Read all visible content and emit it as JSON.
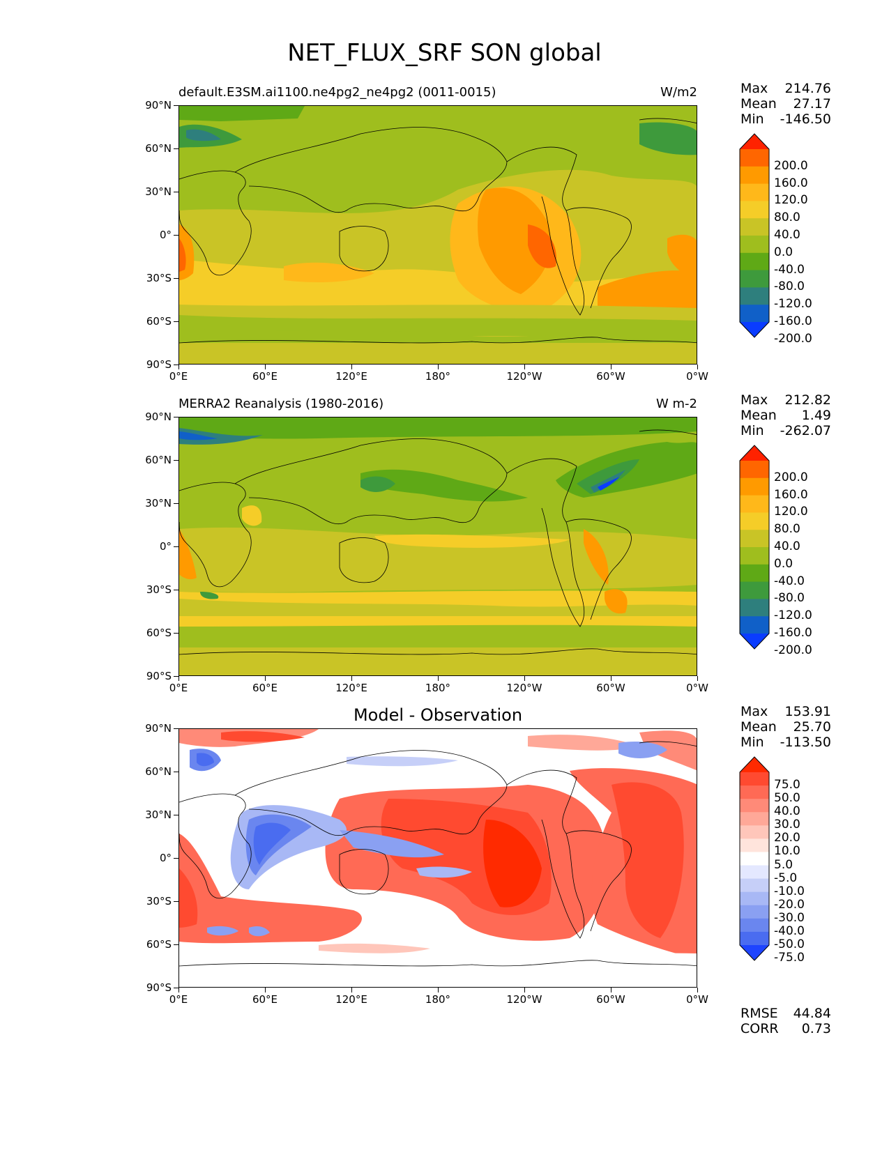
{
  "title": "NET_FLUX_SRF SON global",
  "x_ticks": [
    "0°E",
    "60°E",
    "120°E",
    "180°",
    "120°W",
    "60°W",
    "0°W"
  ],
  "y_ticks": [
    "90°N",
    "60°N",
    "30°N",
    "0°",
    "30°S",
    "60°S",
    "90°S"
  ],
  "panels": [
    {
      "title_left": "default.E3SM.ai1100.ne4pg2_ne4pg2 (0011-0015)",
      "units": "W/m2",
      "stats": {
        "max_label": "Max",
        "max": "214.76",
        "mean_label": "Mean",
        "mean": "27.17",
        "min_label": "Min",
        "min": "-146.50"
      },
      "colorbar_levels": [
        "200.0",
        "160.0",
        "120.0",
        "80.0",
        "40.0",
        "0.0",
        "-40.0",
        "-80.0",
        "-120.0",
        "-160.0",
        "-200.0"
      ],
      "colorbar_colors": [
        "#ff2200",
        "#ff6600",
        "#ff9a00",
        "#ffb81a",
        "#f5cd28",
        "#c9c426",
        "#9fbe1e",
        "#5fa916",
        "#3e9a3c",
        "#2e7f7d",
        "#1060c8",
        "#0a3cff"
      ]
    },
    {
      "title_left": "MERRA2 Reanalysis (1980-2016)",
      "units": "W m-2",
      "stats": {
        "max_label": "Max",
        "max": "212.82",
        "mean_label": "Mean",
        "mean": "1.49",
        "min_label": "Min",
        "min": "-262.07"
      },
      "colorbar_levels": [
        "200.0",
        "160.0",
        "120.0",
        "80.0",
        "40.0",
        "0.0",
        "-40.0",
        "-80.0",
        "-120.0",
        "-160.0",
        "-200.0"
      ],
      "colorbar_colors": [
        "#ff2200",
        "#ff6600",
        "#ff9a00",
        "#ffb81a",
        "#f5cd28",
        "#c9c426",
        "#9fbe1e",
        "#5fa916",
        "#3e9a3c",
        "#2e7f7d",
        "#1060c8",
        "#0a3cff"
      ]
    },
    {
      "title_center": "Model - Observation",
      "stats": {
        "max_label": "Max",
        "max": "153.91",
        "mean_label": "Mean",
        "mean": "25.70",
        "min_label": "Min",
        "min": "-113.50"
      },
      "colorbar_levels": [
        "75.0",
        "50.0",
        "40.0",
        "30.0",
        "20.0",
        "10.0",
        "5.0",
        "-5.0",
        "-10.0",
        "-20.0",
        "-30.0",
        "-40.0",
        "-50.0",
        "-75.0"
      ],
      "colorbar_colors": [
        "#ff2a00",
        "#ff4a30",
        "#ff6a55",
        "#ff8a78",
        "#ffa898",
        "#ffc6ba",
        "#ffe4dc",
        "#ffffff",
        "#e4e8ff",
        "#c6cff8",
        "#a8b8f5",
        "#8aa0f2",
        "#6a86ef",
        "#4a6cf0",
        "#1e44ff"
      ],
      "error_stats": {
        "rmse_label": "RMSE",
        "rmse": "44.84",
        "corr_label": "CORR",
        "corr": "0.73"
      }
    }
  ]
}
